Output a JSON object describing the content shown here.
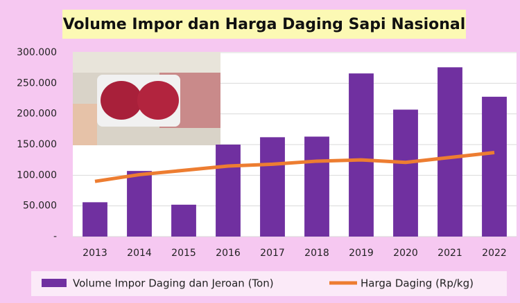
{
  "chart_data": {
    "type": "bar",
    "title": "Volume Impor dan Harga Daging Sapi Nasional",
    "categories": [
      "2013",
      "2014",
      "2015",
      "2016",
      "2017",
      "2018",
      "2019",
      "2020",
      "2021",
      "2022"
    ],
    "series": [
      {
        "name": "Volume Impor Daging dan Jeroan (Ton)",
        "type": "bar",
        "color": "#7030a0",
        "values": [
          56000,
          107000,
          52000,
          150000,
          162000,
          163000,
          266000,
          207000,
          276000,
          228000
        ]
      },
      {
        "name": "Harga Daging (Rp/kg)",
        "type": "line",
        "color": "#ed7d31",
        "values": [
          90000,
          101000,
          108000,
          115000,
          118000,
          123000,
          125000,
          121000,
          129000,
          137000
        ]
      }
    ],
    "ylim": [
      0,
      300000
    ],
    "yticks": [
      {
        "value": 0,
        "label": "-"
      },
      {
        "value": 50000,
        "label": "50.000"
      },
      {
        "value": 100000,
        "label": "100.000"
      },
      {
        "value": 150000,
        "label": "150.000"
      },
      {
        "value": 200000,
        "label": "200.000"
      },
      {
        "value": 250000,
        "label": "250.000"
      },
      {
        "value": 300000,
        "label": "300.000"
      }
    ],
    "grid": true
  }
}
